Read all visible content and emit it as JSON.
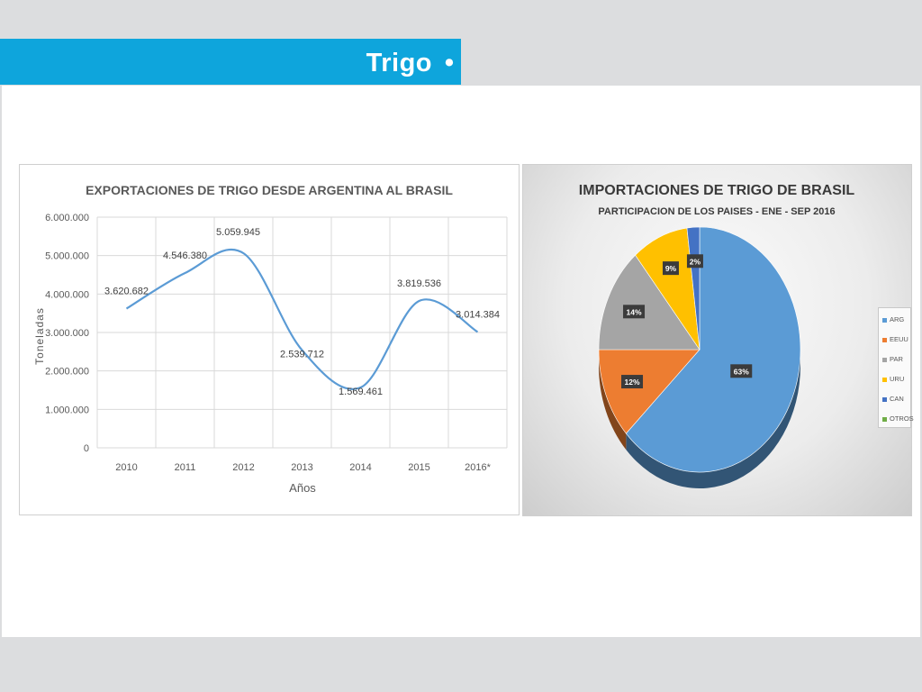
{
  "slide": {
    "title": "Trigo",
    "bullet": "•"
  },
  "chart_data": [
    {
      "type": "line",
      "title": "EXPORTACIONES DE TRIGO DESDE ARGENTINA AL BRASIL",
      "xlabel": "Años",
      "ylabel": "Toneladas",
      "categories": [
        "2010",
        "2011",
        "2012",
        "2013",
        "2014",
        "2015",
        "2016*"
      ],
      "values": [
        3620682,
        4546380,
        5059945,
        2539712,
        1569461,
        3819536,
        3014384
      ],
      "data_labels": [
        "3.620.682",
        "4.546.380",
        "5.059.945",
        "2.539.712",
        "1.569.461",
        "3.819.536",
        "3.014.384"
      ],
      "ylim": [
        0,
        6000000
      ],
      "yticks": [
        0,
        1000000,
        2000000,
        3000000,
        4000000,
        5000000,
        6000000
      ],
      "ytick_labels": [
        "0",
        "1.000.000",
        "2.000.000",
        "3.000.000",
        "4.000.000",
        "5.000.000",
        "6.000.000"
      ],
      "grid": true,
      "line_color": "#5b9bd5"
    },
    {
      "type": "pie",
      "title": "IMPORTACIONES DE TRIGO DE BRASIL",
      "subtitle": "PARTICIPACION DE LOS PAISES - ENE - SEP 2016",
      "categories": [
        "ARG",
        "EEUU",
        "PAR",
        "URU",
        "CAN",
        "OTROS"
      ],
      "values": [
        63,
        12,
        14,
        9,
        2,
        0
      ],
      "data_labels": [
        "63%",
        "12%",
        "14%",
        "9%",
        "2%",
        ""
      ],
      "colors": [
        "#5b9bd5",
        "#ed7d31",
        "#a5a5a5",
        "#ffc000",
        "#4472c4",
        "#70ad47"
      ],
      "legend_position": "right",
      "style": "3d"
    }
  ]
}
